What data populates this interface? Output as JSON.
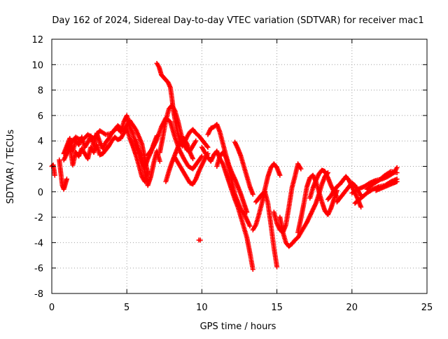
{
  "chart_data": {
    "type": "scatter",
    "title": "Day 162 of 2024, Sidereal Day-to-day VTEC variation (SDTVAR) for receiver mac1",
    "xlabel": "GPS time / hours",
    "ylabel": "SDTVAR / TECUs",
    "xlim": [
      0,
      25
    ],
    "ylim": [
      -8,
      12
    ],
    "xticks": [
      0,
      5,
      10,
      15,
      20,
      25
    ],
    "yticks": [
      -8,
      -6,
      -4,
      -2,
      0,
      2,
      4,
      6,
      8,
      10,
      12
    ],
    "grid": true,
    "marker": "+",
    "series": [
      {
        "name": "SDTVAR",
        "color": "#ff0000",
        "tracks": [
          {
            "x": [
              0.0,
              0.1,
              0.2
            ],
            "y": [
              2.0,
              2.1,
              1.3
            ]
          },
          {
            "x": [
              0.5,
              0.6,
              0.7,
              0.8,
              0.9,
              1.0
            ],
            "y": [
              2.5,
              1.5,
              0.5,
              0.2,
              0.6,
              1.0
            ]
          },
          {
            "x": [
              0.8,
              1.0,
              1.2,
              1.4,
              1.6,
              1.8,
              2.0,
              2.2,
              2.4,
              2.6,
              2.8,
              3.0,
              3.2,
              3.4,
              3.6,
              3.8,
              4.0,
              4.2,
              4.4,
              4.6,
              4.8,
              5.0,
              5.2,
              5.4,
              5.6,
              5.8,
              6.0,
              6.2,
              6.4,
              6.6,
              6.8,
              7.0
            ],
            "y": [
              3.0,
              3.6,
              4.2,
              3.2,
              4.0,
              3.7,
              4.3,
              3.5,
              3.9,
              4.4,
              3.6,
              4.6,
              3.9,
              3.4,
              3.9,
              4.2,
              4.6,
              4.9,
              5.0,
              4.7,
              5.5,
              6.0,
              5.1,
              4.6,
              3.6,
              3.1,
              2.4,
              1.9,
              2.6,
              3.1,
              3.8,
              4.4
            ]
          },
          {
            "x": [
              0.8,
              1.0,
              1.2,
              1.4,
              1.6,
              1.8,
              2.0,
              2.2,
              2.4,
              2.6,
              2.8,
              3.0,
              3.2,
              3.4,
              3.6,
              3.8,
              4.0,
              4.2,
              4.4,
              4.6,
              4.8,
              5.0,
              5.2,
              5.4,
              5.6,
              5.8,
              6.0,
              6.2,
              6.4
            ],
            "y": [
              2.5,
              3.0,
              3.6,
              2.1,
              3.1,
              2.8,
              3.4,
              3.0,
              2.6,
              3.5,
              3.1,
              3.7,
              2.9,
              3.0,
              3.3,
              3.6,
              4.0,
              4.3,
              4.1,
              4.2,
              4.6,
              5.0,
              4.2,
              3.6,
              2.9,
              2.1,
              1.2,
              0.8,
              1.6
            ]
          },
          {
            "x": [
              1.0,
              1.3,
              1.6,
              2.0,
              2.4,
              2.8,
              3.2,
              3.6,
              4.0,
              4.4,
              4.8,
              5.2,
              5.6,
              6.0,
              6.2,
              6.4
            ],
            "y": [
              3.3,
              3.9,
              4.3,
              4.0,
              4.5,
              4.2,
              4.8,
              4.5,
              4.6,
              5.2,
              4.8,
              5.6,
              4.9,
              3.8,
              2.6,
              1.4
            ]
          },
          {
            "x": [
              5.6,
              5.8,
              6.0,
              6.2,
              6.4,
              6.6,
              6.8,
              7.0,
              7.2
            ],
            "y": [
              4.1,
              3.3,
              2.6,
              1.5,
              0.5,
              1.2,
              2.3,
              3.2,
              2.4
            ]
          },
          {
            "x": [
              6.4,
              6.7,
              7.0,
              7.3,
              7.6,
              7.9,
              8.2,
              8.5,
              8.8,
              9.1,
              9.4,
              9.7,
              10.0
            ],
            "y": [
              2.9,
              3.4,
              4.1,
              5.1,
              5.8,
              5.5,
              4.3,
              3.3,
              2.6,
              2.0,
              1.8,
              2.3,
              2.8
            ]
          },
          {
            "x": [
              7.0,
              7.15,
              7.3,
              7.45,
              7.6,
              7.75,
              7.9,
              8.0,
              8.1,
              8.25,
              8.4,
              8.55,
              8.7,
              8.85,
              9.0,
              9.2,
              9.4,
              9.6,
              9.8,
              10.0,
              10.2,
              10.4
            ],
            "y": [
              10.1,
              9.8,
              9.2,
              9.0,
              8.8,
              8.6,
              8.2,
              7.4,
              6.4,
              5.4,
              4.6,
              4.0,
              3.6,
              3.9,
              4.3,
              4.7,
              4.9,
              4.6,
              4.4,
              4.1,
              3.8,
              3.5
            ]
          },
          {
            "x": [
              7.2,
              7.4,
              7.6,
              7.8,
              8.0,
              8.2,
              8.4,
              8.6,
              8.8,
              9.0,
              9.2,
              9.4,
              9.6
            ],
            "y": [
              3.1,
              4.3,
              5.6,
              6.5,
              6.8,
              6.4,
              5.6,
              4.6,
              3.8,
              3.3,
              3.2,
              3.6,
              4.0
            ]
          },
          {
            "x": [
              7.6,
              7.8,
              8.0,
              8.2,
              8.4,
              8.6,
              8.8,
              9.0,
              9.2,
              9.4
            ],
            "y": [
              0.8,
              1.6,
              2.3,
              2.9,
              3.5,
              4.0,
              4.2,
              3.8,
              3.1,
              2.6
            ]
          },
          {
            "x": [
              8.2,
              8.4,
              8.6,
              8.8,
              9.0,
              9.2,
              9.4,
              9.6,
              9.8,
              10.0,
              10.2,
              10.4
            ],
            "y": [
              2.7,
              2.3,
              1.9,
              1.5,
              1.1,
              0.7,
              0.6,
              1.0,
              1.6,
              2.1,
              2.6,
              3.0
            ]
          },
          {
            "x": [
              9.8,
              9.9
            ],
            "y": [
              -3.8,
              -3.8
            ]
          },
          {
            "x": [
              10.4,
              10.6,
              10.8,
              11.0,
              11.2,
              11.4,
              11.6,
              11.8,
              12.0,
              12.2,
              12.4,
              12.6,
              12.8,
              13.0
            ],
            "y": [
              4.5,
              5.0,
              5.1,
              5.3,
              4.7,
              3.8,
              2.9,
              2.1,
              1.5,
              1.0,
              0.4,
              -0.2,
              -0.9,
              -1.6
            ]
          },
          {
            "x": [
              10.0,
              10.2,
              10.4,
              10.6,
              10.8,
              11.0,
              11.2,
              11.4,
              11.6,
              11.8,
              12.0,
              12.2,
              12.4,
              12.6,
              12.8,
              13.0,
              13.2,
              13.4
            ],
            "y": [
              3.5,
              3.1,
              2.7,
              2.4,
              2.9,
              3.2,
              2.6,
              2.2,
              1.5,
              0.8,
              0.1,
              -0.6,
              -1.2,
              -2.0,
              -2.8,
              -3.6,
              -4.8,
              -6.1
            ]
          },
          {
            "x": [
              11.0,
              11.2,
              11.4,
              11.6,
              11.8,
              12.0,
              12.2,
              12.4,
              12.6,
              12.8,
              13.0,
              13.2
            ],
            "y": [
              2.0,
              2.8,
              3.1,
              2.7,
              1.9,
              0.8,
              -0.2,
              -0.8,
              -1.4,
              -1.7,
              -2.2,
              -2.7
            ]
          },
          {
            "x": [
              12.2,
              12.4,
              12.6,
              12.8,
              13.0,
              13.2,
              13.4
            ],
            "y": [
              3.9,
              3.4,
              2.8,
              2.0,
              1.2,
              0.4,
              -0.2
            ]
          },
          {
            "x": [
              13.4,
              13.6,
              13.8,
              14.0,
              14.2,
              14.4,
              14.6,
              14.8,
              15.0,
              15.2
            ],
            "y": [
              -3.0,
              -2.6,
              -1.8,
              -0.9,
              0.2,
              1.2,
              1.9,
              2.2,
              1.9,
              1.3
            ]
          },
          {
            "x": [
              13.6,
              13.8,
              14.0,
              14.2,
              14.4,
              14.6,
              14.8,
              15.0
            ],
            "y": [
              -0.8,
              -0.5,
              -0.2,
              0.0,
              -0.9,
              -2.6,
              -4.4,
              -5.9
            ]
          },
          {
            "x": [
              14.8,
              15.0,
              15.2,
              15.4,
              15.6,
              15.8,
              16.0,
              16.2,
              16.4,
              16.6
            ],
            "y": [
              -1.6,
              -2.5,
              -3.0,
              -3.2,
              -2.6,
              -1.2,
              0.3,
              1.2,
              2.2,
              1.8
            ]
          },
          {
            "x": [
              15.2,
              15.4,
              15.6,
              15.8,
              16.0,
              16.2,
              16.4,
              16.6,
              16.8,
              17.0,
              17.2,
              17.4,
              17.6,
              17.8,
              18.0,
              18.2,
              18.4
            ],
            "y": [
              -2.0,
              -3.2,
              -4.0,
              -4.3,
              -4.1,
              -3.8,
              -3.6,
              -3.2,
              -2.8,
              -2.4,
              -1.9,
              -1.4,
              -0.9,
              -0.2,
              0.6,
              1.2,
              1.5
            ]
          },
          {
            "x": [
              16.4,
              16.6,
              16.8,
              17.0,
              17.2,
              17.4,
              17.6,
              17.8,
              18.0,
              18.2,
              18.4,
              18.6,
              18.8,
              19.0
            ],
            "y": [
              -3.2,
              -2.1,
              -0.9,
              0.4,
              1.1,
              1.3,
              0.8,
              0.0,
              -0.8,
              -1.5,
              -1.8,
              -1.3,
              -0.6,
              0.1
            ]
          },
          {
            "x": [
              17.2,
              17.4,
              17.6,
              17.8,
              18.0,
              18.2,
              18.4,
              18.6,
              18.8,
              19.0
            ],
            "y": [
              -0.5,
              0.3,
              0.9,
              1.4,
              1.7,
              1.6,
              1.1,
              0.5,
              0.0,
              -0.4
            ]
          },
          {
            "x": [
              18.4,
              18.6,
              18.8,
              19.0,
              19.2,
              19.4,
              19.6,
              19.8,
              20.0,
              20.2,
              20.4,
              20.6
            ],
            "y": [
              -0.6,
              -0.3,
              0.1,
              0.4,
              0.6,
              0.9,
              1.2,
              0.9,
              0.4,
              -0.1,
              -0.6,
              -1.2
            ]
          },
          {
            "x": [
              19.0,
              19.2,
              19.4,
              19.6,
              19.8,
              20.0,
              20.2,
              20.4,
              20.6
            ],
            "y": [
              -0.8,
              -0.5,
              -0.2,
              0.1,
              0.4,
              0.7,
              0.5,
              0.1,
              -0.3
            ]
          },
          {
            "x": [
              20.0,
              20.4,
              20.8,
              21.2,
              21.6,
              22.0,
              22.4,
              22.8,
              23.0
            ],
            "y": [
              -0.1,
              0.2,
              0.4,
              0.7,
              0.9,
              1.0,
              1.2,
              1.5,
              1.9
            ]
          },
          {
            "x": [
              20.2,
              20.6,
              21.0,
              21.4,
              21.8,
              22.2,
              22.6,
              23.0
            ],
            "y": [
              -0.9,
              -0.5,
              -0.1,
              0.2,
              0.4,
              0.5,
              0.8,
              1.0
            ]
          },
          {
            "x": [
              21.0,
              21.4,
              21.8,
              22.2,
              22.6,
              23.0
            ],
            "y": [
              0.2,
              0.6,
              0.9,
              1.3,
              1.6,
              1.5
            ]
          },
          {
            "x": [
              21.6,
              22.0,
              22.4,
              22.8,
              23.0
            ],
            "y": [
              0.1,
              0.3,
              0.5,
              0.7,
              0.8
            ]
          }
        ]
      }
    ]
  }
}
